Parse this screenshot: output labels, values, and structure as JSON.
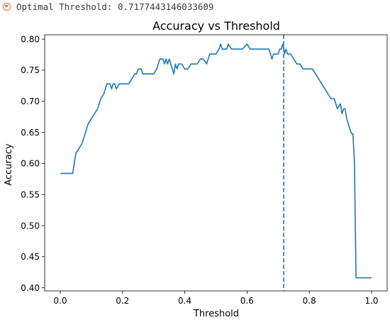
{
  "output": {
    "text": "Optimal Threshold: 0.7177443146033609",
    "icon": "output-status-icon"
  },
  "chart_data": {
    "type": "line",
    "title": "Accuracy vs Threshold",
    "xlabel": "Threshold",
    "ylabel": "Accuracy",
    "xlim": [
      -0.05,
      1.05
    ],
    "ylim": [
      0.395,
      0.807
    ],
    "xticks": [
      0.0,
      0.2,
      0.4,
      0.6,
      0.8,
      1.0
    ],
    "xtick_labels": [
      "0.0",
      "0.2",
      "0.4",
      "0.6",
      "0.8",
      "1.0"
    ],
    "yticks": [
      0.4,
      0.45,
      0.5,
      0.55,
      0.6,
      0.65,
      0.7,
      0.75,
      0.8
    ],
    "ytick_labels": [
      "0.40",
      "0.45",
      "0.50",
      "0.55",
      "0.60",
      "0.65",
      "0.70",
      "0.75",
      "0.80"
    ],
    "grid": false,
    "line_color": "#1f77b4",
    "series": [
      {
        "x": [
          0.0,
          0.04,
          0.045,
          0.05,
          0.06,
          0.07,
          0.08,
          0.085,
          0.09,
          0.1,
          0.11,
          0.12,
          0.13,
          0.14,
          0.145,
          0.15,
          0.16,
          0.165,
          0.17,
          0.175,
          0.18,
          0.19,
          0.2,
          0.21,
          0.22,
          0.23,
          0.24,
          0.245,
          0.25,
          0.26,
          0.265,
          0.27,
          0.3,
          0.31,
          0.315,
          0.32,
          0.33,
          0.335,
          0.34,
          0.345,
          0.35,
          0.36,
          0.365,
          0.37,
          0.375,
          0.38,
          0.39,
          0.4,
          0.41,
          0.42,
          0.43,
          0.44,
          0.45,
          0.46,
          0.47,
          0.48,
          0.49,
          0.5,
          0.51,
          0.515,
          0.52,
          0.525,
          0.53,
          0.535,
          0.54,
          0.55,
          0.56,
          0.57,
          0.58,
          0.585,
          0.6,
          0.61,
          0.62,
          0.63,
          0.64,
          0.66,
          0.67,
          0.675,
          0.68,
          0.685,
          0.69,
          0.7,
          0.705,
          0.71,
          0.715,
          0.718,
          0.72,
          0.725,
          0.73,
          0.74,
          0.75,
          0.76,
          0.77,
          0.78,
          0.79,
          0.8,
          0.81,
          0.82,
          0.83,
          0.84,
          0.85,
          0.86,
          0.87,
          0.88,
          0.89,
          0.9,
          0.905,
          0.91,
          0.915,
          0.92,
          0.925,
          0.93,
          0.935,
          0.94,
          0.945,
          0.95,
          0.955,
          0.96,
          0.97,
          1.0
        ],
        "y": [
          0.584,
          0.584,
          0.6,
          0.616,
          0.624,
          0.632,
          0.648,
          0.656,
          0.664,
          0.672,
          0.68,
          0.688,
          0.704,
          0.712,
          0.72,
          0.728,
          0.728,
          0.72,
          0.728,
          0.728,
          0.72,
          0.728,
          0.728,
          0.728,
          0.728,
          0.736,
          0.744,
          0.744,
          0.752,
          0.752,
          0.744,
          0.744,
          0.744,
          0.752,
          0.76,
          0.768,
          0.768,
          0.76,
          0.768,
          0.76,
          0.768,
          0.752,
          0.744,
          0.76,
          0.752,
          0.76,
          0.76,
          0.752,
          0.752,
          0.76,
          0.76,
          0.76,
          0.768,
          0.768,
          0.76,
          0.776,
          0.776,
          0.776,
          0.784,
          0.792,
          0.784,
          0.784,
          0.784,
          0.784,
          0.792,
          0.784,
          0.784,
          0.784,
          0.784,
          0.784,
          0.792,
          0.784,
          0.784,
          0.784,
          0.784,
          0.784,
          0.784,
          0.776,
          0.768,
          0.776,
          0.776,
          0.776,
          0.784,
          0.784,
          0.792,
          0.784,
          0.776,
          0.784,
          0.776,
          0.776,
          0.768,
          0.76,
          0.76,
          0.752,
          0.752,
          0.752,
          0.752,
          0.744,
          0.736,
          0.728,
          0.72,
          0.712,
          0.704,
          0.704,
          0.688,
          0.696,
          0.68,
          0.688,
          0.688,
          0.672,
          0.664,
          0.656,
          0.648,
          0.648,
          0.6,
          0.416,
          0.416,
          0.416,
          0.416,
          0.416
        ]
      }
    ],
    "vline": {
      "x": 0.7177443146033609,
      "style": "dashed",
      "color": "#1f77b4"
    }
  }
}
